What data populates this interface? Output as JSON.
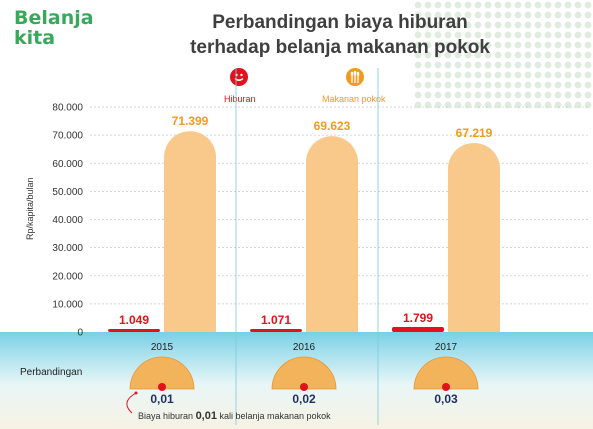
{
  "logo": {
    "line1": "Belanja",
    "line2": "kita"
  },
  "title": {
    "line1": "Perbandingan biaya hiburan",
    "line2": "terhadap belanja makanan pokok"
  },
  "legend": {
    "hiburan": "Hiburan",
    "makanan": "Makanan pokok"
  },
  "perbandingan_label": "Perbandingan",
  "footnote": {
    "pre": "Biaya hiburan",
    "value": "0,01",
    "post": "kali belanja makanan pokok"
  },
  "colors": {
    "hiburan": "#e3111c",
    "makanan": "#f8c98a",
    "makanan_label": "#f39a1e",
    "title": "#3f3f3f",
    "logo": "#38a85a"
  },
  "chart_data": {
    "type": "bar",
    "title": "Perbandingan biaya hiburan terhadap belanja makanan pokok",
    "ylabel": "Rp/kapita/bulan",
    "categories": [
      "2015",
      "2016",
      "2017"
    ],
    "ylim": [
      0,
      80000
    ],
    "yticks": [
      "0",
      "10.000",
      "20.000",
      "30.000",
      "40.000",
      "50.000",
      "60.000",
      "70.000",
      "80.000"
    ],
    "series": [
      {
        "name": "Hiburan",
        "values": [
          1049,
          1071,
          1799
        ],
        "labels": [
          "1.049",
          "1.071",
          "1.799"
        ]
      },
      {
        "name": "Makanan pokok",
        "values": [
          71399,
          69623,
          67219
        ],
        "labels": [
          "71.399",
          "69.623",
          "67.219"
        ]
      }
    ],
    "ratios": [
      "0,01",
      "0,02",
      "0,03"
    ],
    "legend_position": "top"
  }
}
